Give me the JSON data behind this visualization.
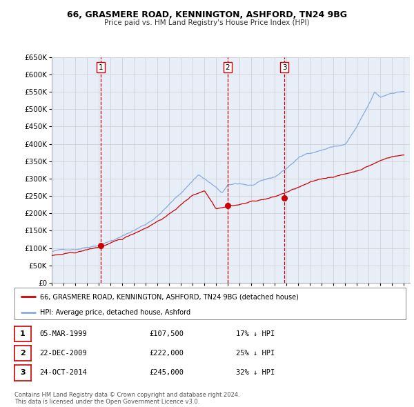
{
  "title": "66, GRASMERE ROAD, KENNINGTON, ASHFORD, TN24 9BG",
  "subtitle": "Price paid vs. HM Land Registry's House Price Index (HPI)",
  "ylim": [
    0,
    650000
  ],
  "yticks": [
    0,
    50000,
    100000,
    150000,
    200000,
    250000,
    300000,
    350000,
    400000,
    450000,
    500000,
    550000,
    600000,
    650000
  ],
  "xlim_start": 1995.0,
  "xlim_end": 2025.5,
  "grid_color": "#cccccc",
  "bg_color": "#e8eef8",
  "sale_color": "#cc0000",
  "hpi_color": "#88aadd",
  "vline_color": "#cc0000",
  "sales": [
    {
      "year": 1999.17,
      "price": 107500,
      "label": "1"
    },
    {
      "year": 2009.97,
      "price": 222000,
      "label": "2"
    },
    {
      "year": 2014.81,
      "price": 245000,
      "label": "3"
    }
  ],
  "legend_sale_label": "66, GRASMERE ROAD, KENNINGTON, ASHFORD, TN24 9BG (detached house)",
  "legend_hpi_label": "HPI: Average price, detached house, Ashford",
  "table_rows": [
    {
      "num": "1",
      "date": "05-MAR-1999",
      "price": "£107,500",
      "pct": "17% ↓ HPI"
    },
    {
      "num": "2",
      "date": "22-DEC-2009",
      "price": "£222,000",
      "pct": "25% ↓ HPI"
    },
    {
      "num": "3",
      "date": "24-OCT-2014",
      "price": "£245,000",
      "pct": "32% ↓ HPI"
    }
  ],
  "footer": "Contains HM Land Registry data © Crown copyright and database right 2024.\nThis data is licensed under the Open Government Licence v3.0.",
  "xtick_years": [
    1995,
    1996,
    1997,
    1998,
    1999,
    2000,
    2001,
    2002,
    2003,
    2004,
    2005,
    2006,
    2007,
    2008,
    2009,
    2010,
    2011,
    2012,
    2013,
    2014,
    2015,
    2016,
    2017,
    2018,
    2019,
    2020,
    2021,
    2022,
    2023,
    2024,
    2025
  ]
}
